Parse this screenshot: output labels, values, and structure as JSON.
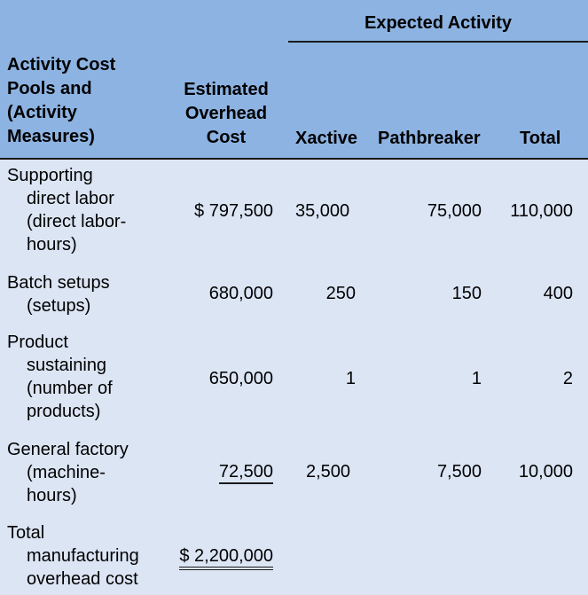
{
  "header": {
    "group_title": "Expected Activity",
    "pools_title": [
      "Activity Cost",
      "Pools and",
      "(Activity",
      "Measures)"
    ],
    "cost_title": [
      "Estimated",
      "Overhead",
      "Cost"
    ],
    "col_xactive": "Xactive",
    "col_pathbreaker": "Pathbreaker",
    "col_total": "Total"
  },
  "rows": [
    {
      "label_first": "Supporting",
      "label_rest": [
        "direct labor",
        "(direct labor-",
        "hours)"
      ],
      "cost": "$ 797,500",
      "xactive": "35,000",
      "pathbreaker": "75,000",
      "total": "110,000"
    },
    {
      "label_first": "Batch setups",
      "label_rest": [
        "(setups)"
      ],
      "cost": "680,000",
      "xactive": "250",
      "pathbreaker": "150",
      "total": "400"
    },
    {
      "label_first": "Product",
      "label_rest": [
        "sustaining",
        "(number of",
        "products)"
      ],
      "cost": "650,000",
      "xactive": "1",
      "pathbreaker": "1",
      "total": "2"
    },
    {
      "label_first": "General factory",
      "label_rest": [
        "(machine-",
        "hours)"
      ],
      "cost": "72,500",
      "xactive": "2,500",
      "pathbreaker": "7,500",
      "total": "10,000"
    }
  ],
  "total_row": {
    "label_first": "Total",
    "label_rest": [
      "manufacturing",
      "overhead cost"
    ],
    "cost": "$ 2,200,000"
  }
}
